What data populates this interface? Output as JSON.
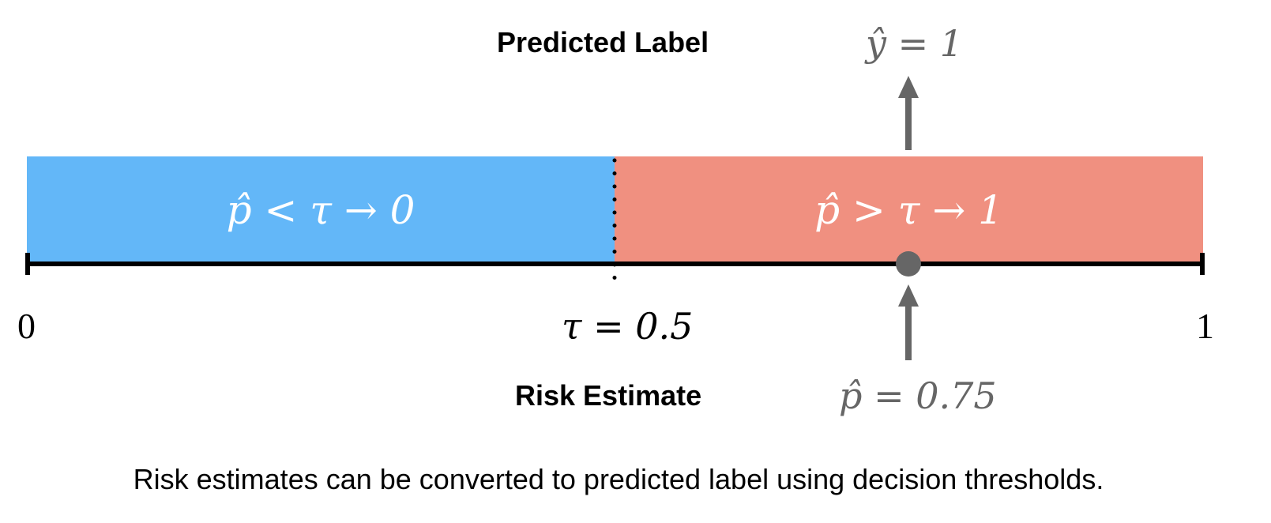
{
  "colors": {
    "below_region": "#63b7f8",
    "above_region": "#f09080",
    "axis": "#000000",
    "marker": "#666666",
    "arrow": "#666666",
    "text_gray": "#666666"
  },
  "scale": {
    "min": 0,
    "max": 1,
    "threshold": 0.5,
    "estimate": 0.75
  },
  "labels": {
    "predicted_label_heading": "Predicted Label",
    "predicted_value": "ŷ = 1",
    "region_below": "p̂ < τ → 0",
    "region_above": "p̂ > τ → 1",
    "tick_min": "0",
    "tick_threshold": "τ = 0.5",
    "tick_max": "1",
    "risk_estimate_heading": "Risk Estimate",
    "estimate_value": "p̂ = 0.75",
    "caption": "Risk estimates can be converted to predicted label using decision thresholds."
  },
  "icons": {
    "up_arrow_top": "arrow-up-icon",
    "up_arrow_bottom": "arrow-up-icon",
    "estimate_marker": "circle-marker-icon"
  }
}
